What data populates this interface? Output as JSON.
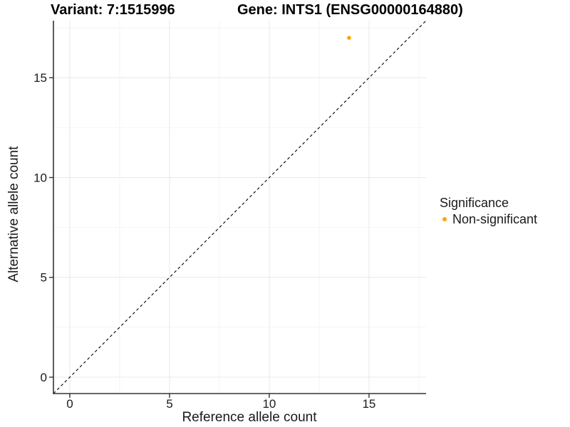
{
  "chart_data": {
    "type": "scatter",
    "titles": {
      "variant": "Variant: 7:1515996",
      "gene": "Gene: INTS1 (ENSG00000164880)"
    },
    "xlabel": "Reference allele count",
    "ylabel": "Alternative allele count",
    "xlim": [
      -0.82,
      17.86
    ],
    "ylim": [
      -0.82,
      17.86
    ],
    "x_ticks": [
      0,
      5,
      10,
      15
    ],
    "y_ticks": [
      0,
      5,
      10,
      15
    ],
    "x_minor_ticks": [
      2.5,
      7.5,
      12.5,
      17.5
    ],
    "y_minor_ticks": [
      2.5,
      7.5,
      12.5,
      17.5
    ],
    "grid": "major+minor",
    "reference_line": {
      "type": "identity",
      "slope": 1,
      "intercept": 0,
      "style": "dashed",
      "color": "#000000"
    },
    "series": [
      {
        "name": "Non-significant",
        "color": "#FFA500",
        "points": [
          {
            "x": 14,
            "y": 17
          }
        ]
      }
    ],
    "legend": {
      "title": "Significance",
      "position": "right",
      "items": [
        {
          "label": "Non-significant",
          "color": "#FFA500"
        }
      ]
    }
  },
  "colors": {
    "point_orange": "#FFA500",
    "axis_line": "#333333",
    "tick_label": "#1a1a1a",
    "grid_major": "#e8e8e8",
    "grid_minor": "#f4f4f4",
    "background": "#ffffff"
  }
}
